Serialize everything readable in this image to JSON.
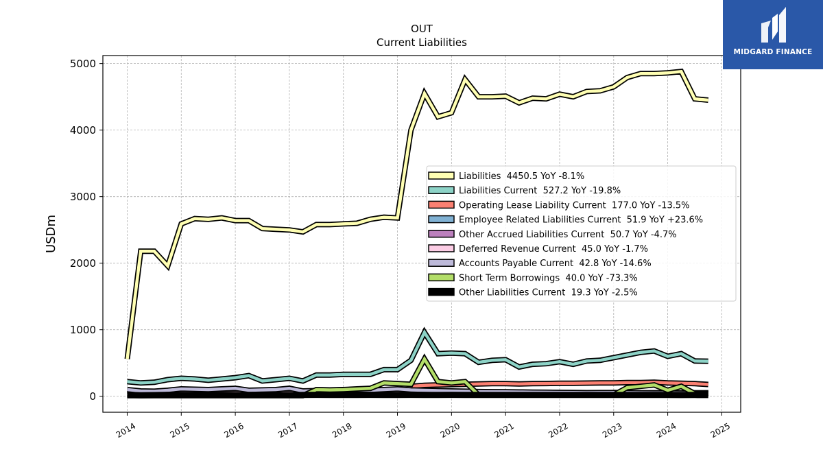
{
  "logo": {
    "text": "MIDGARD FINANCE"
  },
  "chart_data": {
    "type": "line",
    "title": "OUT",
    "subtitle": "Current  Liabilities",
    "xlabel": "",
    "ylabel": "USDm",
    "xlim": [
      2013.55,
      2025.35
    ],
    "ylim": [
      -240,
      5120
    ],
    "x_ticks": [
      "2014",
      "2015",
      "2016",
      "2017",
      "2018",
      "2019",
      "2020",
      "2021",
      "2022",
      "2023",
      "2024",
      "2025"
    ],
    "y_ticks": [
      0,
      1000,
      2000,
      3000,
      4000,
      5000
    ],
    "grid": true,
    "legend_position": "right",
    "x": [
      2014.0,
      2014.25,
      2014.5,
      2014.75,
      2015.0,
      2015.25,
      2015.5,
      2015.75,
      2016.0,
      2016.25,
      2016.5,
      2016.75,
      2017.0,
      2017.25,
      2017.5,
      2017.75,
      2018.0,
      2018.25,
      2018.5,
      2018.75,
      2019.0,
      2019.25,
      2019.5,
      2019.75,
      2020.0,
      2020.25,
      2020.5,
      2020.75,
      2021.0,
      2021.25,
      2021.5,
      2021.75,
      2022.0,
      2022.25,
      2022.5,
      2022.75,
      2023.0,
      2023.25,
      2023.5,
      2023.75,
      2024.0,
      2024.25,
      2024.5,
      2024.75
    ],
    "series": [
      {
        "name": "Liabilities",
        "legend": "Liabilities  4450.5 YoY -8.1%",
        "color": "#ffffb3",
        "values": [
          560,
          2180,
          2180,
          1960,
          2590,
          2670,
          2660,
          2680,
          2640,
          2640,
          2520,
          2510,
          2500,
          2470,
          2580,
          2580,
          2590,
          2600,
          2660,
          2690,
          2680,
          4000,
          4550,
          4200,
          4260,
          4760,
          4500,
          4500,
          4510,
          4410,
          4480,
          4470,
          4540,
          4500,
          4580,
          4590,
          4650,
          4790,
          4850,
          4850,
          4860,
          4880,
          4470,
          4450
        ]
      },
      {
        "name": "Liabilities Current",
        "legend": "Liabilities Current  527.2 YoY -19.8%",
        "color": "#8dd3c7",
        "values": [
          220,
          200,
          210,
          250,
          270,
          260,
          240,
          260,
          280,
          310,
          230,
          250,
          270,
          230,
          320,
          320,
          330,
          330,
          330,
          400,
          400,
          540,
          960,
          640,
          650,
          640,
          510,
          540,
          550,
          440,
          480,
          490,
          520,
          480,
          530,
          540,
          580,
          620,
          660,
          680,
          600,
          640,
          530,
          527
        ]
      },
      {
        "name": "Operating Lease Liability Current",
        "legend": "Operating Lease Liability Current  177.0 YoY -13.5%",
        "color": "#fb8072",
        "values": [
          null,
          null,
          null,
          null,
          null,
          null,
          null,
          null,
          null,
          null,
          null,
          null,
          null,
          null,
          null,
          null,
          null,
          null,
          null,
          null,
          null,
          150,
          165,
          170,
          175,
          180,
          185,
          190,
          190,
          185,
          190,
          192,
          195,
          195,
          198,
          200,
          200,
          205,
          205,
          210,
          200,
          195,
          190,
          177
        ]
      },
      {
        "name": "Employee Related Liabilities Current",
        "legend": "Employee Related Liabilities Current  51.9 YoY +23.6%",
        "color": "#80b1d3",
        "values": [
          30,
          32,
          30,
          34,
          36,
          35,
          34,
          36,
          38,
          37,
          36,
          38,
          39,
          36,
          38,
          40,
          40,
          41,
          42,
          44,
          44,
          45,
          48,
          44,
          42,
          40,
          41,
          42,
          43,
          42,
          44,
          44,
          45,
          44,
          45,
          46,
          46,
          47,
          48,
          48,
          42,
          44,
          50,
          52
        ]
      },
      {
        "name": "Other Accrued Liabilities Current",
        "legend": "Other Accrued Liabilities Current  50.7 YoY -4.7%",
        "color": "#bc80bd",
        "values": [
          60,
          55,
          50,
          52,
          60,
          58,
          56,
          58,
          60,
          58,
          55,
          57,
          58,
          55,
          56,
          57,
          58,
          57,
          58,
          60,
          62,
          60,
          58,
          55,
          56,
          58,
          57,
          56,
          55,
          54,
          55,
          54,
          55,
          53,
          54,
          53,
          54,
          53,
          52,
          53,
          53,
          52,
          51,
          51
        ]
      },
      {
        "name": "Deferred Revenue Current",
        "legend": "Deferred Revenue Current  45.0 YoY -1.7%",
        "color": "#fccde5",
        "values": [
          40,
          42,
          41,
          43,
          45,
          44,
          43,
          45,
          46,
          45,
          44,
          46,
          47,
          45,
          46,
          47,
          48,
          47,
          46,
          47,
          48,
          47,
          46,
          45,
          46,
          47,
          46,
          45,
          46,
          45,
          46,
          45,
          46,
          45,
          46,
          45,
          46,
          45,
          46,
          46,
          45,
          46,
          45,
          45
        ]
      },
      {
        "name": "Accounts Payable Current",
        "legend": "Accounts Payable Current  42.8 YoY -14.6%",
        "color": "#bebada",
        "values": [
          100,
          80,
          75,
          90,
          110,
          105,
          100,
          110,
          120,
          90,
          95,
          100,
          120,
          80,
          85,
          90,
          100,
          95,
          90,
          100,
          110,
          95,
          90,
          85,
          80,
          75,
          70,
          68,
          66,
          64,
          62,
          60,
          58,
          56,
          54,
          55,
          56,
          54,
          52,
          50,
          50,
          48,
          46,
          43
        ]
      },
      {
        "name": "Short Term Borrowings",
        "legend": "Short Term Borrowings  40.0 YoY -73.3%",
        "color": "#b3de69",
        "values": [
          10,
          10,
          10,
          10,
          10,
          10,
          10,
          10,
          10,
          10,
          10,
          10,
          10,
          10,
          100,
          95,
          100,
          110,
          120,
          200,
          190,
          180,
          560,
          220,
          200,
          220,
          20,
          20,
          20,
          20,
          20,
          20,
          20,
          20,
          20,
          20,
          20,
          130,
          150,
          170,
          90,
          150,
          40,
          40
        ]
      },
      {
        "name": "Other Liabilities Current",
        "legend": "Other Liabilities Current  19.3 YoY -2.5%",
        "color": "#000000",
        "values": [
          20,
          15,
          18,
          22,
          20,
          18,
          20,
          22,
          18,
          20,
          22,
          20,
          18,
          20,
          22,
          20,
          21,
          20,
          22,
          21,
          20,
          22,
          21,
          20,
          22,
          21,
          20,
          21,
          20,
          21,
          20,
          20,
          21,
          20,
          20,
          21,
          20,
          20,
          20,
          20,
          20,
          19,
          20,
          19
        ]
      }
    ]
  }
}
